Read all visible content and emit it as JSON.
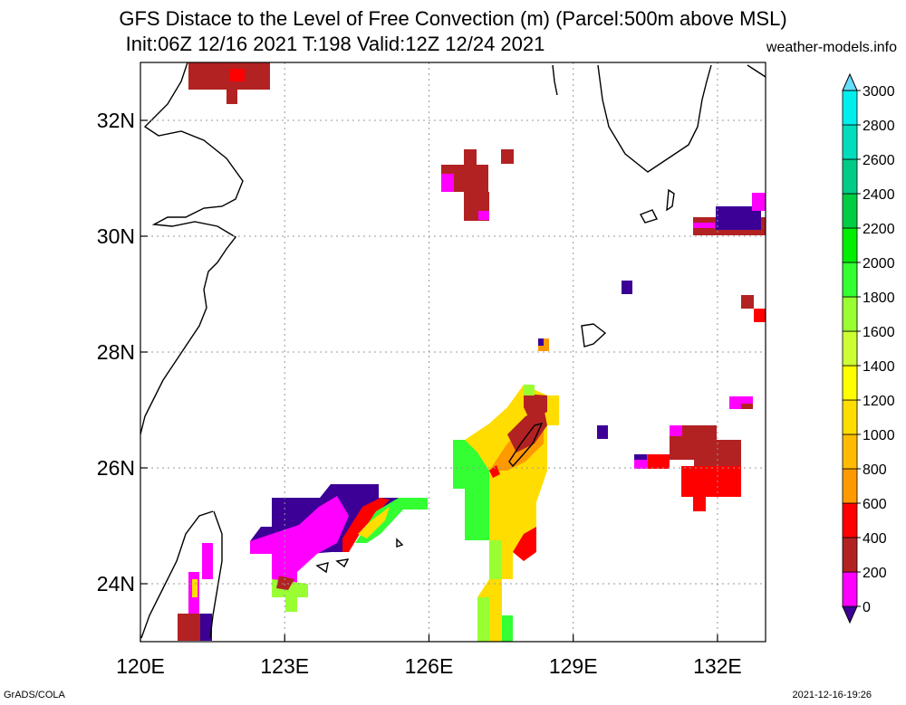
{
  "title": {
    "line1": "GFS Distace to the Level of Free Convection (m) (Parcel:500m above MSL)",
    "line2": "Init:06Z 12/16 2021 T:198 Valid:12Z 12/24 2021"
  },
  "site_credit": "weather-models.info",
  "footer": {
    "left": "GrADS/COLA",
    "right": "2021-12-16-19:26"
  },
  "map": {
    "lon_range": [
      120,
      133
    ],
    "lat_range": [
      23,
      33
    ],
    "lon_ticks": [
      {
        "value": 120,
        "label": "120E"
      },
      {
        "value": 123,
        "label": "123E"
      },
      {
        "value": 126,
        "label": "126E"
      },
      {
        "value": 129,
        "label": "129E"
      },
      {
        "value": 132,
        "label": "132E"
      }
    ],
    "lat_ticks": [
      {
        "value": 24,
        "label": "24N"
      },
      {
        "value": 26,
        "label": "26N"
      },
      {
        "value": 28,
        "label": "28N"
      },
      {
        "value": 30,
        "label": "30N"
      },
      {
        "value": 32,
        "label": "32N"
      }
    ],
    "grid": true
  },
  "colorbar": {
    "levels": [
      "0",
      "200",
      "400",
      "600",
      "800",
      "1000",
      "1200",
      "1400",
      "1600",
      "1800",
      "2000",
      "2200",
      "2400",
      "2600",
      "2800",
      "3000"
    ],
    "colors": [
      "#3c0096",
      "#ff00ff",
      "#b22222",
      "#ff0000",
      "#ff9900",
      "#ffbb00",
      "#ffdd00",
      "#ffff00",
      "#ccff33",
      "#99ff33",
      "#33ff33",
      "#00ee00",
      "#00cc44",
      "#00cc88",
      "#00ddbb",
      "#00eeee",
      "#66ddff"
    ]
  },
  "field_patches": [
    {
      "name": "north-china-coast",
      "lon": 121.6,
      "lat": 32.7,
      "level": "400"
    },
    {
      "name": "north-china-coast-core",
      "lon": 122.2,
      "lat": 32.7,
      "level": "600"
    },
    {
      "name": "east-china-sea-patch",
      "lon": 126.9,
      "lat": 31.0,
      "level": "400"
    },
    {
      "name": "kyushu-south-patch",
      "lon": 132.0,
      "lat": 30.1,
      "level": "0"
    },
    {
      "name": "okinawa-region",
      "lon": 127.6,
      "lat": 25.4,
      "level": "1400"
    },
    {
      "name": "taiwan-northeast",
      "lon": 123.7,
      "lat": 25.0,
      "level": "200"
    },
    {
      "name": "daito-islands-region",
      "lon": 131.5,
      "lat": 26.0,
      "level": "600"
    },
    {
      "name": "taiwan-east",
      "lon": 121.0,
      "lat": 23.8,
      "level": "200"
    }
  ]
}
